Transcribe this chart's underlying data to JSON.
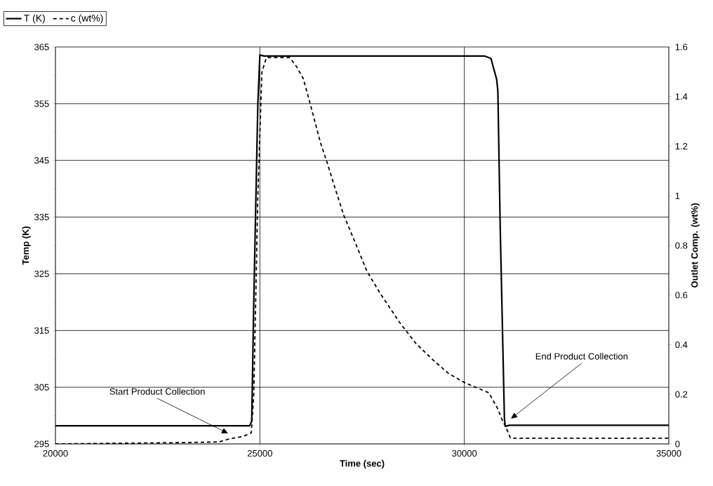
{
  "chart_data": {
    "type": "line",
    "xlabel": "Time (sec)",
    "ylabel": "Temp (K)",
    "y2label": "Outlet Comp. (wt%)",
    "xlim": [
      20000,
      35000
    ],
    "xticks": [
      20000,
      25000,
      30000,
      35000
    ],
    "ylim": [
      295,
      365
    ],
    "yticks": [
      295,
      305,
      315,
      325,
      335,
      345,
      355,
      365
    ],
    "y2lim": [
      0,
      1.6
    ],
    "y2ticks": [
      0,
      0.2,
      0.4,
      0.6,
      0.8,
      1,
      1.2,
      1.4,
      1.6
    ],
    "grid": true,
    "legend": "top left",
    "series": [
      {
        "name": "T (K)",
        "color": "#000000",
        "line_style": "solid",
        "axis": "y",
        "x": [
          20000,
          24750,
          24800,
          24850,
          24950,
          25000,
          25100,
          30500,
          30650,
          30790,
          30820,
          30875,
          30980,
          31000,
          31100,
          35000
        ],
        "values": [
          298.2,
          298.2,
          299,
          320,
          355,
          363.6,
          363.4,
          363.4,
          363,
          359.3,
          357.2,
          334,
          299.5,
          298.1,
          298.3,
          298.3
        ]
      },
      {
        "name": "c (wt%)",
        "color": "#000000",
        "line_style": "dashed",
        "axis": "y2",
        "x": [
          20000,
          23000,
          24000,
          24250,
          24600,
          24790,
          24850,
          24950,
          25050,
          25160,
          25730,
          25900,
          26060,
          26230,
          26480,
          26650,
          26830,
          27050,
          27340,
          27620,
          27960,
          28420,
          28820,
          29230,
          29620,
          30020,
          30600,
          30820,
          30910,
          31000,
          31130,
          35000
        ],
        "values": [
          0,
          0.005,
          0.008,
          0.02,
          0.031,
          0.045,
          0.2,
          1.0,
          1.5,
          1.557,
          1.557,
          1.52,
          1.473,
          1.371,
          1.215,
          1.131,
          1.035,
          0.922,
          0.808,
          0.695,
          0.602,
          0.489,
          0.404,
          0.339,
          0.283,
          0.246,
          0.206,
          0.141,
          0.102,
          0.073,
          0.023,
          0.023
        ]
      }
    ],
    "annotations": [
      "Start Product Collection",
      "End Product Collection"
    ]
  }
}
